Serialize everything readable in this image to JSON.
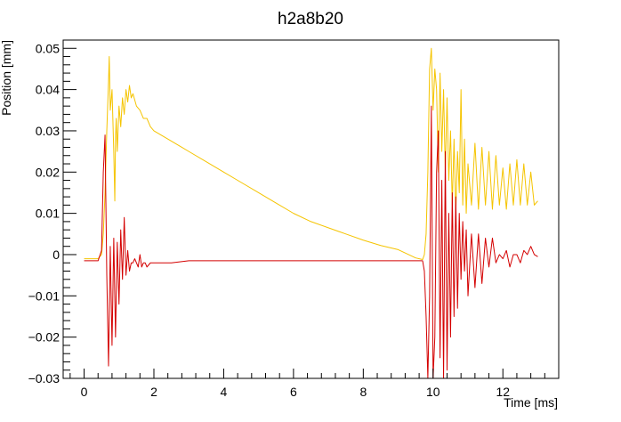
{
  "chart_data": {
    "type": "line",
    "title": "h2a8b20",
    "xlabel": "Time [ms]",
    "ylabel": "Position [mm]",
    "xlim": [
      -0.6,
      13.6
    ],
    "ylim": [
      -0.03,
      0.052
    ],
    "x_ticks": [
      0,
      2,
      4,
      6,
      8,
      10,
      12
    ],
    "x_tick_labels": [
      "0",
      "2",
      "4",
      "6",
      "8",
      "10",
      "12"
    ],
    "y_ticks": [
      -0.03,
      -0.02,
      -0.01,
      0,
      0.01,
      0.02,
      0.03,
      0.04,
      0.05
    ],
    "y_tick_labels": [
      "−0.03",
      "−0.02",
      "−0.01",
      "0",
      "0.01",
      "0.02",
      "0.03",
      "0.04",
      "0.05"
    ],
    "grid": false,
    "legend": "none",
    "series": [
      {
        "color": "#f5c400",
        "x": [
          0.0,
          0.4,
          0.5,
          0.55,
          0.6,
          0.65,
          0.7,
          0.72,
          0.75,
          0.8,
          0.85,
          0.88,
          0.9,
          0.92,
          0.95,
          1.0,
          1.05,
          1.1,
          1.15,
          1.2,
          1.25,
          1.3,
          1.35,
          1.4,
          1.5,
          1.6,
          1.7,
          1.8,
          1.9,
          2.0,
          2.2,
          2.4,
          2.6,
          2.8,
          3.0,
          3.5,
          4.0,
          4.5,
          5.0,
          5.5,
          6.0,
          6.5,
          7.0,
          7.5,
          8.0,
          8.5,
          9.0,
          9.5,
          9.7,
          9.75,
          9.8,
          9.85,
          9.9,
          9.95,
          10.0,
          10.05,
          10.1,
          10.15,
          10.2,
          10.25,
          10.3,
          10.35,
          10.4,
          10.45,
          10.5,
          10.55,
          10.6,
          10.65,
          10.7,
          10.75,
          10.8,
          10.85,
          10.9,
          10.95,
          11.0,
          11.1,
          11.2,
          11.3,
          11.4,
          11.5,
          11.6,
          11.7,
          11.8,
          11.9,
          12.0,
          12.1,
          12.2,
          12.3,
          12.4,
          12.5,
          12.6,
          12.7,
          12.8,
          12.9,
          13.0
        ],
        "y": [
          -0.001,
          -0.001,
          0.0,
          0.005,
          0.015,
          0.03,
          0.042,
          0.048,
          0.035,
          0.04,
          0.025,
          0.013,
          0.028,
          0.033,
          0.025,
          0.036,
          0.031,
          0.038,
          0.034,
          0.04,
          0.037,
          0.041,
          0.038,
          0.039,
          0.036,
          0.035,
          0.033,
          0.033,
          0.031,
          0.03,
          0.029,
          0.028,
          0.027,
          0.026,
          0.025,
          0.0225,
          0.02,
          0.0175,
          0.015,
          0.0125,
          0.01,
          0.008,
          0.0065,
          0.005,
          0.0035,
          0.0022,
          0.0012,
          -0.0008,
          -0.0012,
          0.0,
          0.005,
          0.02,
          0.045,
          0.05,
          0.035,
          0.045,
          0.04,
          0.02,
          0.044,
          0.025,
          0.04,
          0.02,
          0.038,
          0.018,
          0.03,
          0.012,
          0.028,
          0.01,
          0.025,
          0.015,
          0.04,
          0.012,
          0.028,
          0.01,
          0.022,
          0.012,
          0.027,
          0.011,
          0.026,
          0.012,
          0.025,
          0.011,
          0.024,
          0.012,
          0.021,
          0.011,
          0.022,
          0.012,
          0.023,
          0.012,
          0.022,
          0.012,
          0.02,
          0.012,
          0.013
        ]
      },
      {
        "color": "#d40000",
        "x": [
          0.0,
          0.4,
          0.5,
          0.55,
          0.6,
          0.65,
          0.7,
          0.75,
          0.8,
          0.85,
          0.9,
          0.95,
          1.0,
          1.05,
          1.1,
          1.15,
          1.2,
          1.25,
          1.3,
          1.35,
          1.4,
          1.45,
          1.5,
          1.55,
          1.6,
          1.65,
          1.7,
          1.75,
          1.8,
          1.9,
          2.0,
          2.5,
          3.0,
          3.5,
          4.0,
          4.5,
          5.0,
          5.5,
          6.0,
          6.5,
          7.0,
          7.5,
          8.0,
          8.5,
          9.0,
          9.5,
          9.7,
          9.75,
          9.8,
          9.85,
          9.9,
          9.95,
          10.0,
          10.05,
          10.1,
          10.15,
          10.2,
          10.25,
          10.3,
          10.35,
          10.4,
          10.45,
          10.5,
          10.55,
          10.6,
          10.65,
          10.7,
          10.75,
          10.8,
          10.85,
          10.9,
          10.95,
          11.0,
          11.1,
          11.2,
          11.3,
          11.4,
          11.5,
          11.6,
          11.7,
          11.8,
          11.9,
          12.0,
          12.1,
          12.2,
          12.3,
          12.4,
          12.5,
          12.6,
          12.7,
          12.8,
          12.9,
          13.0
        ],
        "y": [
          -0.0015,
          -0.0015,
          0.001,
          0.02,
          0.029,
          -0.005,
          -0.027,
          0.002,
          -0.022,
          0.004,
          -0.02,
          0.003,
          -0.012,
          0.006,
          -0.006,
          0.009,
          -0.005,
          0.001,
          -0.004,
          -0.002,
          -0.002,
          -0.001,
          -0.002,
          -0.003,
          0.0,
          -0.003,
          -0.002,
          -0.002,
          -0.003,
          -0.002,
          -0.002,
          -0.002,
          -0.0015,
          -0.0015,
          -0.0015,
          -0.0015,
          -0.0015,
          -0.0015,
          -0.0015,
          -0.0015,
          -0.0015,
          -0.0015,
          -0.0015,
          -0.0015,
          -0.0015,
          -0.0015,
          -0.0015,
          -0.004,
          -0.015,
          -0.03,
          -0.01,
          0.036,
          -0.03,
          -0.02,
          0.02,
          0.03,
          -0.025,
          0.018,
          -0.03,
          0.025,
          -0.028,
          0.01,
          -0.02,
          0.015,
          -0.015,
          0.014,
          -0.013,
          0.01,
          -0.006,
          0.008,
          -0.004,
          0.006,
          -0.01,
          0.005,
          -0.008,
          0.005,
          -0.007,
          0.004,
          -0.003,
          0.004,
          -0.002,
          0.0,
          -0.001,
          0.001,
          -0.003,
          0.0,
          0.0,
          -0.002,
          0.001,
          0.0,
          0.002,
          0.0,
          -0.0005
        ]
      }
    ]
  }
}
